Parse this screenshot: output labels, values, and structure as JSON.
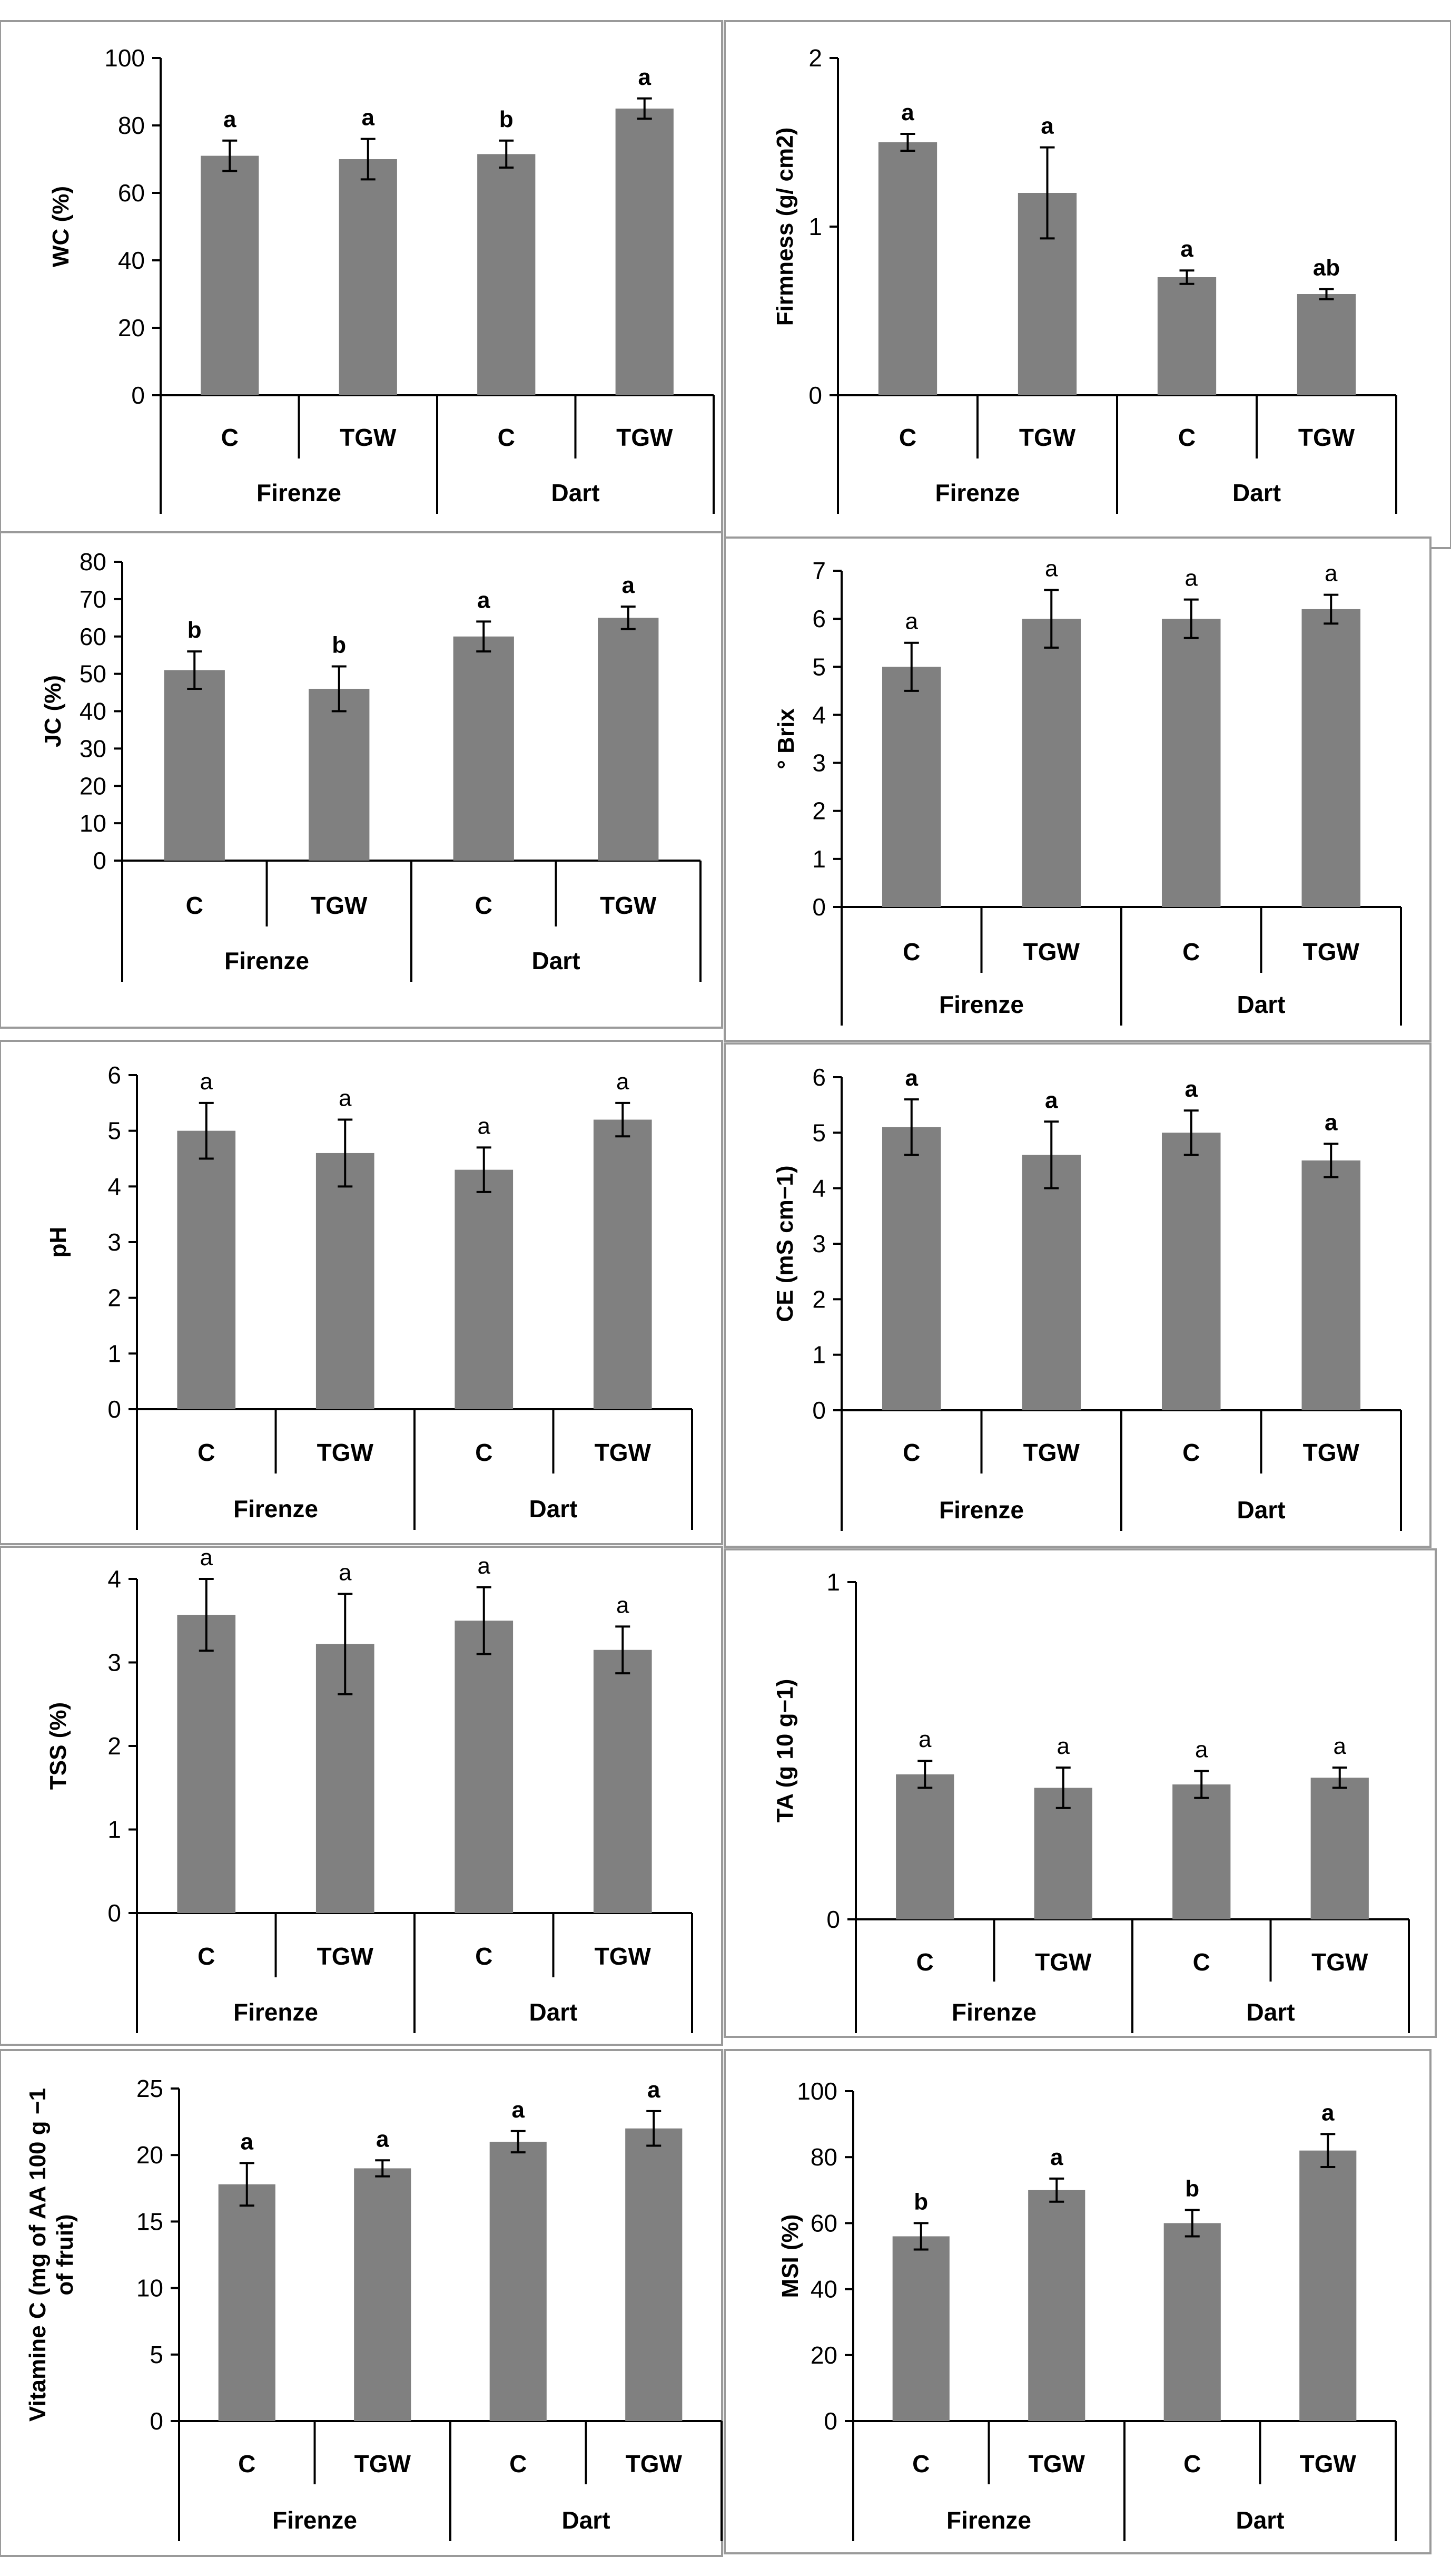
{
  "colors": {
    "bar": "#808080",
    "frame": "#9a9a9a",
    "axis": "#000000"
  },
  "chart_data": [
    {
      "type": "bar",
      "ylabel": "WC (%)",
      "ylim": [
        0,
        100
      ],
      "yticks": [
        0,
        20,
        40,
        60,
        80,
        100
      ],
      "yticklabels": [
        "0",
        "20",
        "40",
        "60",
        "80",
        "100"
      ],
      "categories": [
        "C",
        "TGW",
        "C",
        "TGW"
      ],
      "groups": [
        "Firenze",
        "Dart"
      ],
      "values": [
        71,
        70,
        71.5,
        85
      ],
      "errors": [
        4.5,
        6,
        4,
        3
      ],
      "significance": [
        "a",
        "a",
        "b",
        "a"
      ],
      "significance_bold": true
    },
    {
      "type": "bar",
      "ylabel": "Firmness (g/ cm2)",
      "ylim": [
        0,
        2
      ],
      "yticks": [
        0,
        1,
        2
      ],
      "yticklabels": [
        "0",
        "1",
        "2"
      ],
      "categories": [
        "C",
        "TGW",
        "C",
        "TGW"
      ],
      "groups": [
        "Firenze",
        "Dart"
      ],
      "values": [
        1.5,
        1.2,
        0.7,
        0.6
      ],
      "errors": [
        0.05,
        0.27,
        0.04,
        0.03
      ],
      "significance": [
        "a",
        "a",
        "a",
        "ab"
      ],
      "significance_bold": true
    },
    {
      "type": "bar",
      "ylabel": "JC (%)",
      "ylim": [
        0,
        80
      ],
      "yticks": [
        0,
        10,
        20,
        30,
        40,
        50,
        60,
        70,
        80
      ],
      "yticklabels": [
        "0",
        "10",
        "20",
        "30",
        "40",
        "50",
        "60",
        "70",
        "80"
      ],
      "categories": [
        "C",
        "TGW",
        "C",
        "TGW"
      ],
      "groups": [
        "Firenze",
        "Dart"
      ],
      "values": [
        51,
        46,
        60,
        65
      ],
      "errors": [
        5,
        6,
        4,
        3
      ],
      "significance": [
        "b",
        "b",
        "a",
        "a"
      ],
      "significance_bold": true
    },
    {
      "type": "bar",
      "ylabel": "° Brix",
      "ylim": [
        0,
        7
      ],
      "yticks": [
        0,
        1,
        2,
        3,
        4,
        5,
        6,
        7
      ],
      "yticklabels": [
        "0",
        "1",
        "2",
        "3",
        "4",
        "5",
        "6",
        "7"
      ],
      "categories": [
        "C",
        "TGW",
        "C",
        "TGW"
      ],
      "groups": [
        "Firenze",
        "Dart"
      ],
      "values": [
        5,
        6,
        6,
        6.2
      ],
      "errors": [
        0.5,
        0.6,
        0.4,
        0.3
      ],
      "significance": [
        "a",
        "a",
        "a",
        "a"
      ],
      "significance_bold": false
    },
    {
      "type": "bar",
      "ylabel": "pH",
      "ylim": [
        0,
        6
      ],
      "yticks": [
        0,
        1,
        2,
        3,
        4,
        5,
        6
      ],
      "yticklabels": [
        "0",
        "1",
        "2",
        "3",
        "4",
        "5",
        "6"
      ],
      "categories": [
        "C",
        "TGW",
        "C",
        "TGW"
      ],
      "groups": [
        "Firenze",
        "Dart"
      ],
      "values": [
        5,
        4.6,
        4.3,
        5.2
      ],
      "errors": [
        0.5,
        0.6,
        0.4,
        0.3
      ],
      "significance": [
        "a",
        "a",
        "a",
        "a"
      ],
      "significance_bold": false
    },
    {
      "type": "bar",
      "ylabel": "CE (mS cm−1)",
      "ylim": [
        0,
        6
      ],
      "yticks": [
        0,
        1,
        2,
        3,
        4,
        5,
        6
      ],
      "yticklabels": [
        "0",
        "1",
        "2",
        "3",
        "4",
        "5",
        "6"
      ],
      "categories": [
        "C",
        "TGW",
        "C",
        "TGW"
      ],
      "groups": [
        "Firenze",
        "Dart"
      ],
      "values": [
        5.1,
        4.6,
        5,
        4.5
      ],
      "errors": [
        0.5,
        0.6,
        0.4,
        0.3
      ],
      "significance": [
        "a",
        "a",
        "a",
        "a"
      ],
      "significance_bold": true
    },
    {
      "type": "bar",
      "ylabel": "TSS (%)",
      "ylim": [
        0,
        4
      ],
      "yticks": [
        0,
        1,
        2,
        3,
        4
      ],
      "yticklabels": [
        "0",
        "1",
        "2",
        "3",
        "4"
      ],
      "categories": [
        "C",
        "TGW",
        "C",
        "TGW"
      ],
      "groups": [
        "Firenze",
        "Dart"
      ],
      "values": [
        3.57,
        3.22,
        3.5,
        3.15
      ],
      "errors": [
        0.43,
        0.6,
        0.4,
        0.28
      ],
      "significance": [
        "a",
        "a",
        "a",
        "a"
      ],
      "significance_bold": false
    },
    {
      "type": "bar",
      "ylabel": "TA (g 10 g−1)",
      "ylim": [
        0,
        1
      ],
      "yticks": [
        0,
        1
      ],
      "yticklabels": [
        "0",
        "1"
      ],
      "categories": [
        "C",
        "TGW",
        "C",
        "TGW"
      ],
      "groups": [
        "Firenze",
        "Dart"
      ],
      "values": [
        0.43,
        0.39,
        0.4,
        0.42
      ],
      "errors": [
        0.04,
        0.06,
        0.04,
        0.03
      ],
      "significance": [
        "a",
        "a",
        "a",
        "a"
      ],
      "significance_bold": false
    },
    {
      "type": "bar",
      "ylabel": "Vitamine C (mg of AA 100 g−1 of fruit)",
      "ylabel_lines": [
        "Vitamine C (mg of AA 100 g −1",
        "of fruit)"
      ],
      "ylim": [
        0,
        25
      ],
      "yticks": [
        0,
        5,
        10,
        15,
        20,
        25
      ],
      "yticklabels": [
        "0",
        "5",
        "10",
        "15",
        "20",
        "25"
      ],
      "categories": [
        "C",
        "TGW",
        "C",
        "TGW"
      ],
      "groups": [
        "Firenze",
        "Dart"
      ],
      "values": [
        17.8,
        19,
        21,
        22
      ],
      "errors": [
        1.6,
        0.6,
        0.8,
        1.3
      ],
      "significance": [
        "a",
        "a",
        "a",
        "a"
      ],
      "significance_bold": true
    },
    {
      "type": "bar",
      "ylabel": "MSI (%)",
      "ylim": [
        0,
        100
      ],
      "yticks": [
        0,
        20,
        40,
        60,
        80,
        100
      ],
      "yticklabels": [
        "0",
        "20",
        "40",
        "60",
        "80",
        "100"
      ],
      "categories": [
        "C",
        "TGW",
        "C",
        "TGW"
      ],
      "groups": [
        "Firenze",
        "Dart"
      ],
      "values": [
        56,
        70,
        60,
        82
      ],
      "errors": [
        4,
        3.5,
        4,
        5
      ],
      "significance": [
        "b",
        "a",
        "b",
        "a"
      ],
      "significance_bold": true
    }
  ]
}
